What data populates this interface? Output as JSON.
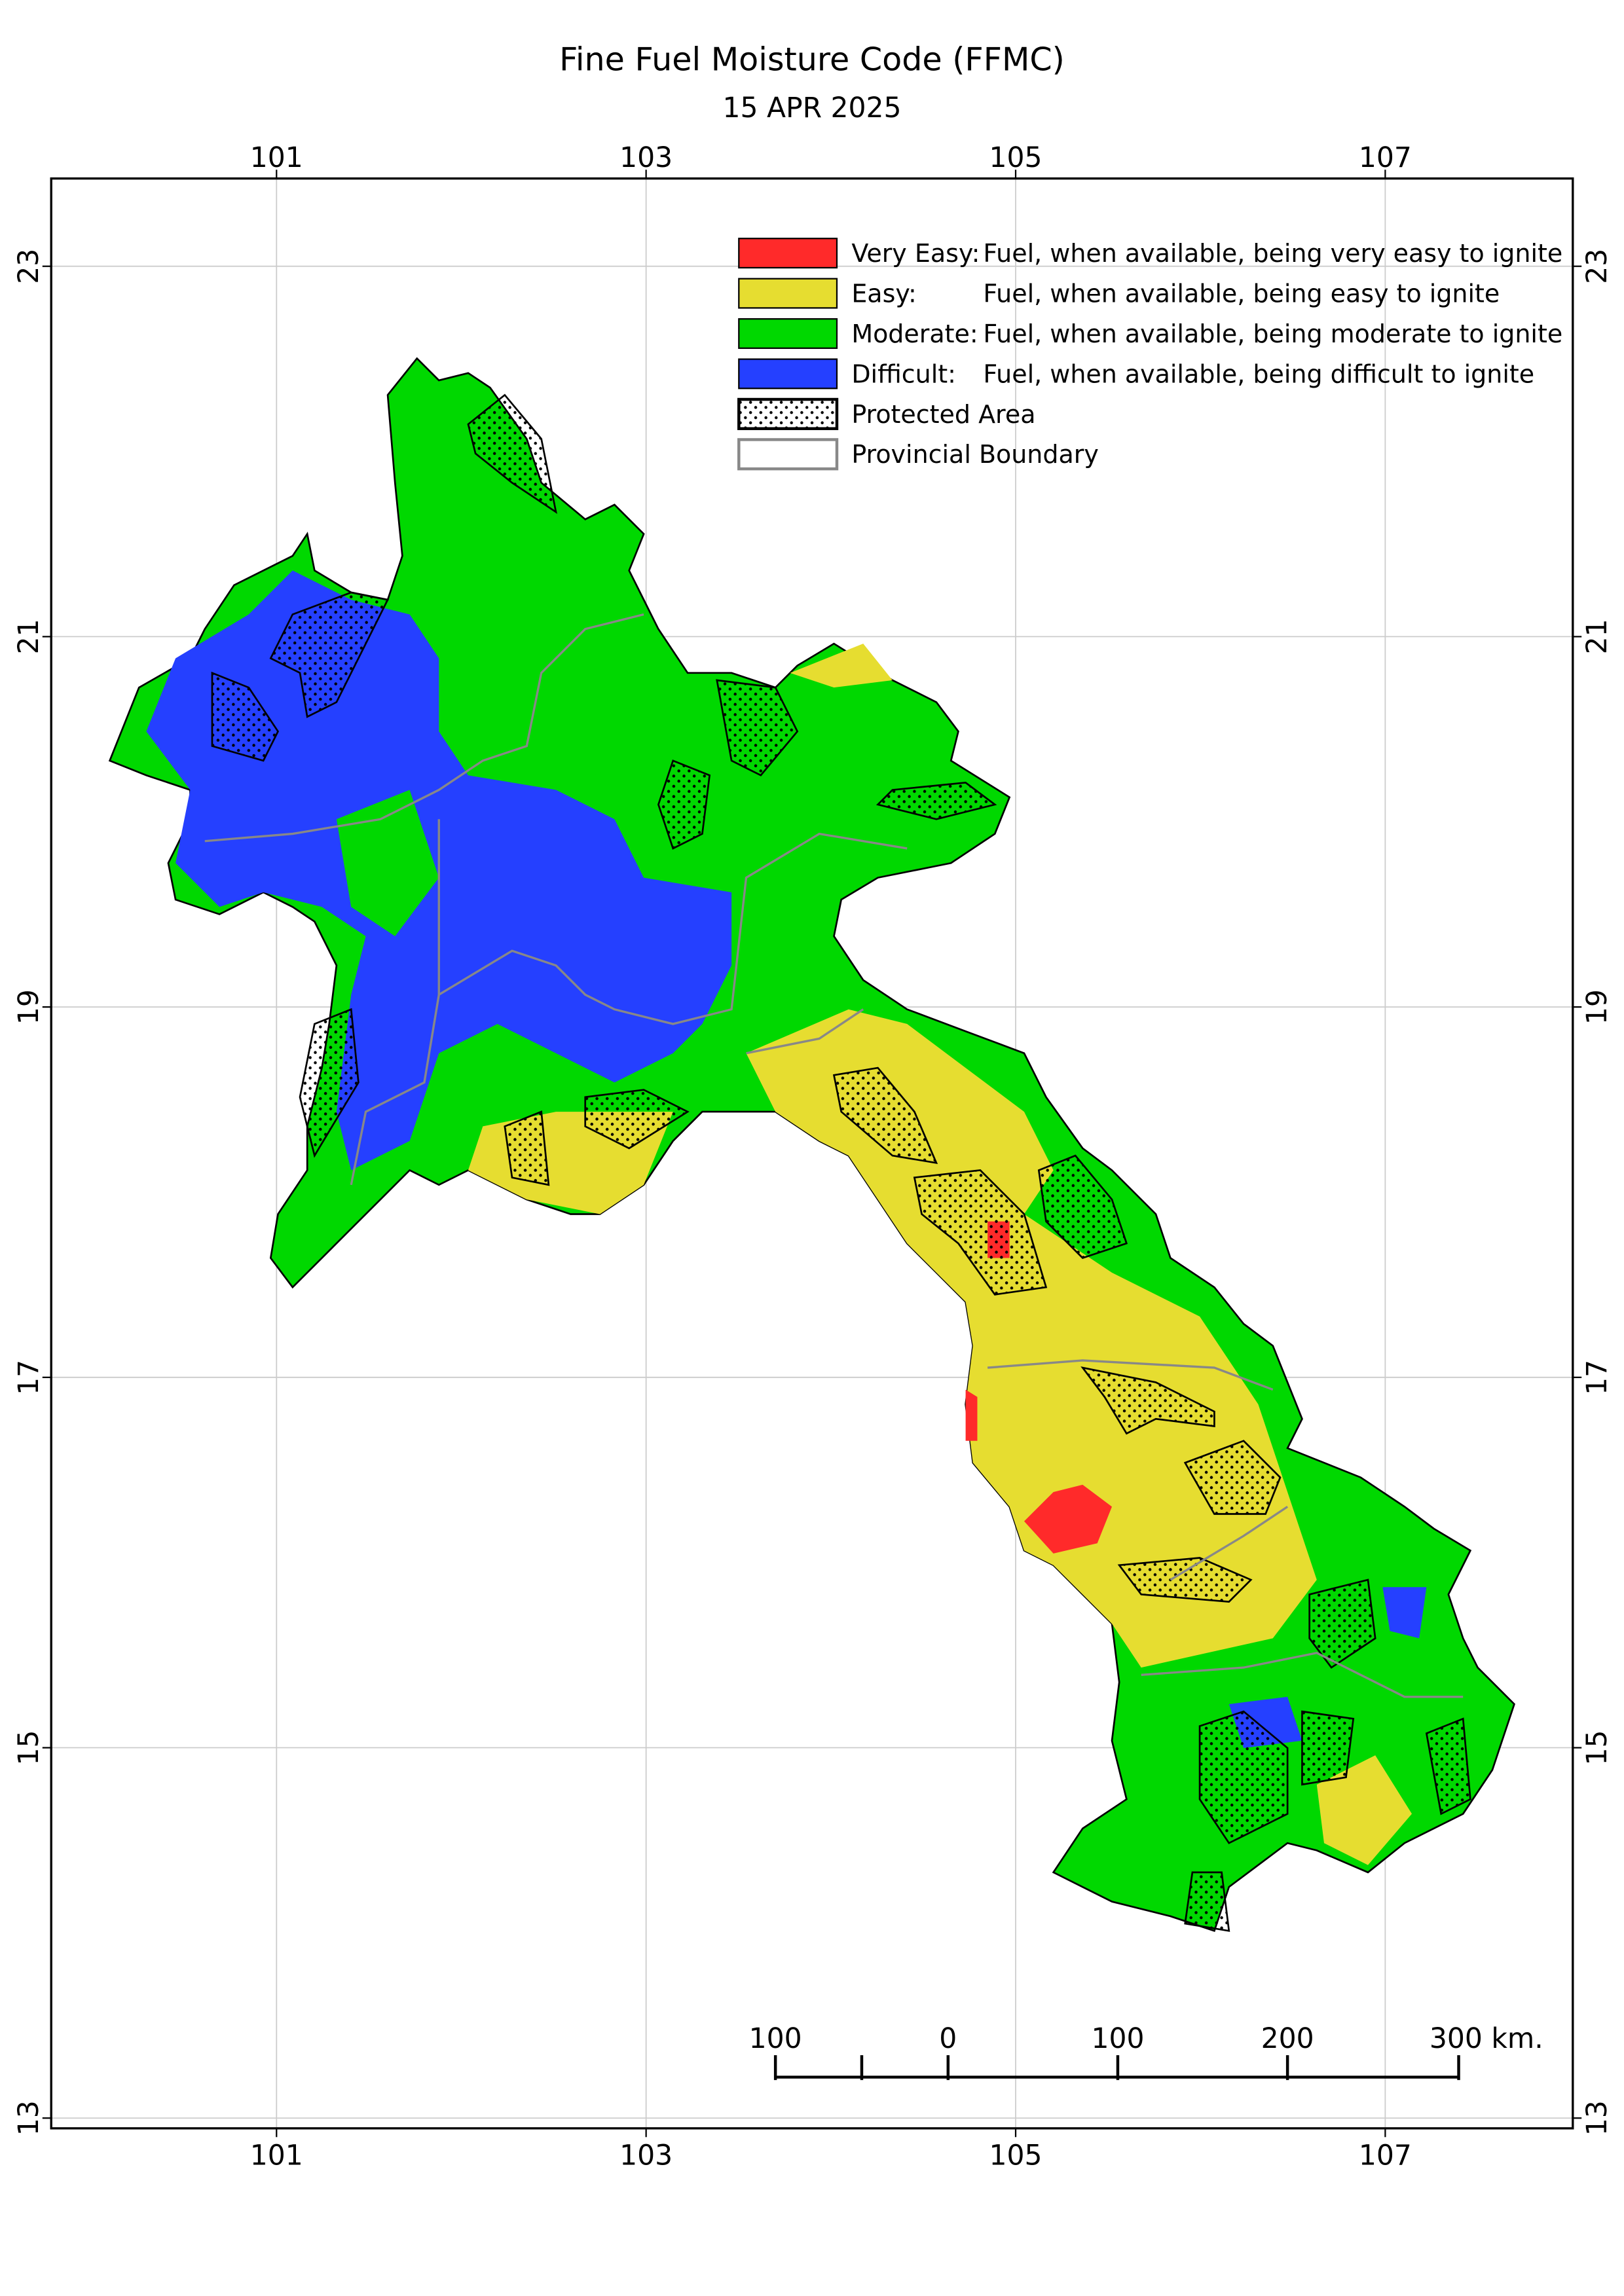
{
  "header": {
    "title": "Fine Fuel Moisture Code (FFMC)",
    "date": "15 APR 2025"
  },
  "axes": {
    "lon_ticks": [
      101,
      103,
      105,
      107
    ],
    "lat_ticks": [
      23,
      21,
      19,
      17,
      15,
      13
    ]
  },
  "legend": [
    {
      "label": "Very Easy:",
      "description": "Fuel, when available, being very easy to ignite",
      "color": "#ff2a2a"
    },
    {
      "label": "Easy:",
      "description": "Fuel, when available, being easy to ignite",
      "color": "#e6dd30"
    },
    {
      "label": "Moderate:",
      "description": "Fuel, when available, being moderate to ignite",
      "color": "#00d800"
    },
    {
      "label": "Difficult:",
      "description": "Fuel, when available, being difficult to ignite",
      "color": "#2540ff"
    },
    {
      "label": "Protected Area"
    },
    {
      "label": "Provincial Boundary"
    }
  ],
  "scale_bar": {
    "labels": [
      "100",
      "0",
      "100",
      "200",
      "300 km."
    ]
  }
}
